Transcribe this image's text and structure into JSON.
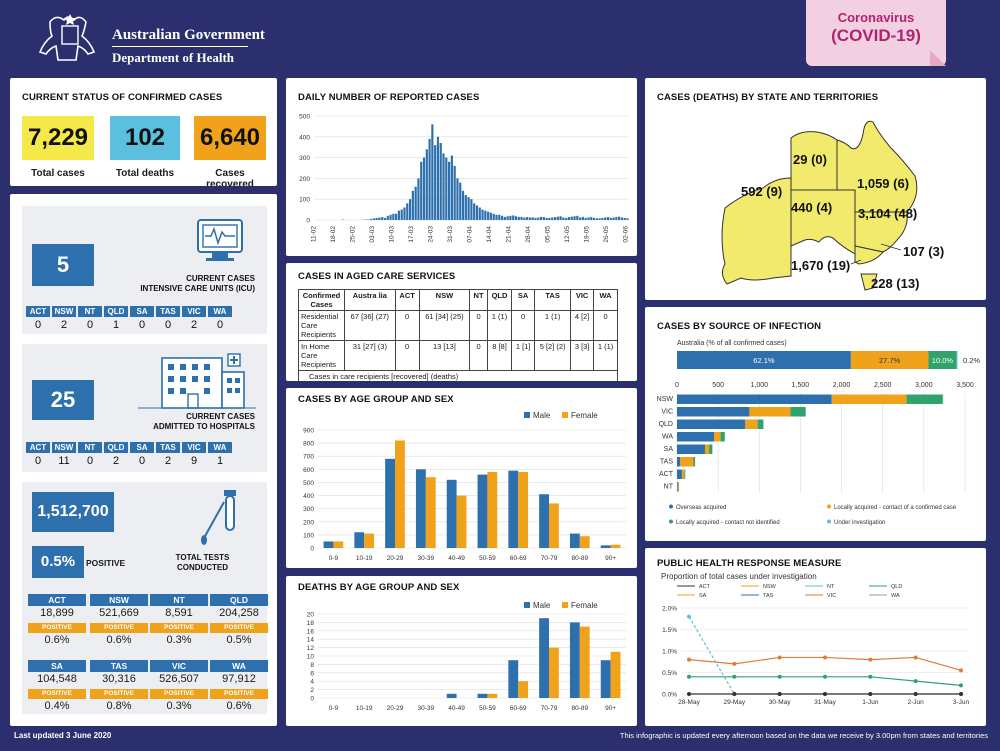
{
  "header": {
    "gov_line1": "Australian Government",
    "gov_line2": "Department of Health",
    "badge_line1": "Coronavirus",
    "badge_line2": "(COVID-19)"
  },
  "status": {
    "title": "CURRENT STATUS OF CONFIRMED CASES",
    "total_cases": "7,229",
    "total_cases_label": "Total cases",
    "total_deaths": "102",
    "total_deaths_label": "Total deaths",
    "recovered": "6,640",
    "recovered_label": "Cases recovered"
  },
  "icu": {
    "value": "5",
    "label1": "CURRENT CASES",
    "label2": "INTENSIVE CARE UNITS (ICU)",
    "states": [
      "ACT",
      "NSW",
      "NT",
      "QLD",
      "SA",
      "TAS",
      "VIC",
      "WA"
    ],
    "values": [
      "0",
      "2",
      "0",
      "1",
      "0",
      "0",
      "2",
      "0"
    ]
  },
  "hospital": {
    "value": "25",
    "label1": "CURRENT CASES",
    "label2": "ADMITTED TO HOSPITALS",
    "states": [
      "ACT",
      "NSW",
      "NT",
      "QLD",
      "SA",
      "TAS",
      "VIC",
      "WA"
    ],
    "values": [
      "0",
      "11",
      "0",
      "2",
      "0",
      "2",
      "9",
      "1"
    ]
  },
  "tests": {
    "total": "1,512,700",
    "positive_pct": "0.5%",
    "positive_label": "POSITIVE",
    "label1": "TOTAL TESTS",
    "label2": "CONDUCTED",
    "positive_tag": "POSITIVE",
    "rows": [
      [
        {
          "state": "ACT",
          "tests": "18,899",
          "pct": "0.6%"
        },
        {
          "state": "NSW",
          "tests": "521,669",
          "pct": "0.6%"
        },
        {
          "state": "NT",
          "tests": "8,591",
          "pct": "0.3%"
        },
        {
          "state": "QLD",
          "tests": "204,258",
          "pct": "0.5%"
        }
      ],
      [
        {
          "state": "SA",
          "tests": "104,548",
          "pct": "0.4%"
        },
        {
          "state": "TAS",
          "tests": "30,316",
          "pct": "0.8%"
        },
        {
          "state": "VIC",
          "tests": "526,507",
          "pct": "0.3%"
        },
        {
          "state": "WA",
          "tests": "97,912",
          "pct": "0.6%"
        }
      ]
    ]
  },
  "daily": {
    "title": "DAILY NUMBER OF REPORTED CASES",
    "yticks": [
      "0",
      "100",
      "200",
      "300",
      "400",
      "500"
    ],
    "xticks": [
      "11-02",
      "18-02",
      "25-02",
      "03-03",
      "10-03",
      "17-03",
      "24-03",
      "31-03",
      "07-04",
      "14-04",
      "21-04",
      "28-04",
      "05-05",
      "12-05",
      "19-05",
      "26-05",
      "02-06"
    ]
  },
  "aged": {
    "title": "CASES IN AGED CARE SERVICES",
    "headers": [
      "Confirmed Cases",
      "Austra lia",
      "ACT",
      "NSW",
      "NT",
      "QLD",
      "SA",
      "TAS",
      "VIC",
      "WA"
    ],
    "rows": [
      [
        "Residential Care Recipients",
        "67 [36] (27)",
        "0",
        "61 [34] (25)",
        "0",
        "1 (1)",
        "0",
        "1 (1)",
        "4 [2]",
        "0"
      ],
      [
        "In Home Care Recipients",
        "31 [27] (3)",
        "0",
        "13 [13]",
        "0",
        "8 [8]",
        "1 [1]",
        "5 [2] (2)",
        "3 [3]",
        "1 (1)"
      ]
    ],
    "note": "Cases in care recipients [recovered] (deaths)"
  },
  "map": {
    "title": "CASES (DEATHS) BY STATE AND TERRITORIES",
    "labels": {
      "NT": "29 (0)",
      "WA": "592 (9)",
      "QLD": "1,059 (6)",
      "SA": "440 (4)",
      "NSW": "3,104 (48)",
      "ACT": "107 (3)",
      "VIC": "1,670 (19)",
      "TAS": "228 (13)"
    }
  },
  "source": {
    "title": "CASES BY SOURCE OF INFECTION",
    "aus_label": "Australia (% of all confirmed cases)",
    "aus_pct": [
      "62.1%",
      "27.7%",
      "10.0%",
      "0.2%"
    ],
    "xticks": [
      "0",
      "500",
      "1,000",
      "1,500",
      "2,000",
      "2,500",
      "3,000",
      "3,500"
    ],
    "legend": [
      "Overseas acquired",
      "Locally acquired - contact of a confirmed case",
      "Locally acquired - contact not identified",
      "Under investigation"
    ]
  },
  "phrm": {
    "title": "PUBLIC HEALTH RESPONSE MEASURE",
    "subtitle": "Proportion of total cases under investigation",
    "legend": [
      "ACT",
      "NSW",
      "NT",
      "QLD",
      "SA",
      "TAS",
      "VIC",
      "WA"
    ],
    "yticks": [
      "0.0%",
      "0.5%",
      "1.0%",
      "1.5%",
      "2.0%"
    ],
    "xticks": [
      "28-May",
      "29-May",
      "30-May",
      "31-May",
      "1-Jun",
      "2-Jun",
      "3-Jun"
    ]
  },
  "agechart": {
    "title": "CASES BY AGE GROUP AND SEX",
    "legend_male": "Male",
    "legend_female": "Female",
    "yticks": [
      "0",
      "100",
      "200",
      "300",
      "400",
      "500",
      "600",
      "700",
      "800",
      "900"
    ]
  },
  "deathchart": {
    "title": "DEATHS BY AGE GROUP AND SEX",
    "legend_male": "Male",
    "legend_female": "Female",
    "yticks": [
      "0",
      "2",
      "4",
      "6",
      "8",
      "10",
      "12",
      "14",
      "16",
      "18",
      "20"
    ]
  },
  "footer": {
    "left": "Last updated 3 June 2020",
    "right": "This infographic is updated every afternoon based on the data we receive by 3.00pm from states and territories"
  },
  "colors": {
    "blue": "#2e6fae",
    "orange": "#f0a21b",
    "green": "#2fa36b",
    "yellow": "#f5e94a",
    "cyan": "#5bc0de",
    "map": "#f2ea6d"
  },
  "chart_data": [
    {
      "type": "bar",
      "title": "DAILY NUMBER OF REPORTED CASES",
      "x": [
        "11-02",
        "12-02",
        "13-02",
        "14-02",
        "15-02",
        "16-02",
        "17-02",
        "18-02",
        "19-02",
        "20-02",
        "21-02",
        "22-02",
        "23-02",
        "24-02",
        "25-02",
        "26-02",
        "27-02",
        "28-02",
        "29-02",
        "01-03",
        "02-03",
        "03-03",
        "04-03",
        "05-03",
        "06-03",
        "07-03",
        "08-03",
        "09-03",
        "10-03",
        "11-03",
        "12-03",
        "13-03",
        "14-03",
        "15-03",
        "16-03",
        "17-03",
        "18-03",
        "19-03",
        "20-03",
        "21-03",
        "22-03",
        "23-03",
        "24-03",
        "25-03",
        "26-03",
        "27-03",
        "28-03",
        "29-03",
        "30-03",
        "31-03",
        "01-04",
        "02-04",
        "03-04",
        "04-04",
        "05-04",
        "06-04",
        "07-04",
        "08-04",
        "09-04",
        "10-04",
        "11-04",
        "12-04",
        "13-04",
        "14-04",
        "15-04",
        "16-04",
        "17-04",
        "18-04",
        "19-04",
        "20-04",
        "21-04",
        "22-04",
        "23-04",
        "24-04",
        "25-04",
        "26-04",
        "27-04",
        "28-04",
        "29-04",
        "30-04",
        "01-05",
        "02-05",
        "03-05",
        "04-05",
        "05-05",
        "06-05",
        "07-05",
        "08-05",
        "09-05",
        "10-05",
        "11-05",
        "12-05",
        "13-05",
        "14-05",
        "15-05",
        "16-05",
        "17-05",
        "18-05",
        "19-05",
        "20-05",
        "21-05",
        "22-05",
        "23-05",
        "24-05",
        "25-05",
        "26-05",
        "27-05",
        "28-05",
        "29-05",
        "30-05",
        "31-05",
        "01-06",
        "02-06"
      ],
      "values": [
        0,
        0,
        0,
        0,
        0,
        0,
        0,
        0,
        0,
        0,
        2,
        0,
        0,
        0,
        0,
        0,
        0,
        1,
        2,
        2,
        5,
        8,
        10,
        12,
        14,
        10,
        20,
        25,
        30,
        30,
        45,
        50,
        60,
        80,
        100,
        140,
        160,
        200,
        280,
        300,
        340,
        390,
        460,
        360,
        400,
        370,
        320,
        300,
        280,
        310,
        260,
        200,
        180,
        140,
        120,
        110,
        100,
        80,
        70,
        60,
        50,
        45,
        40,
        35,
        30,
        25,
        25,
        20,
        15,
        18,
        20,
        22,
        18,
        15,
        15,
        12,
        14,
        12,
        13,
        10,
        12,
        15,
        14,
        10,
        10,
        12,
        14,
        16,
        18,
        12,
        10,
        14,
        16,
        18,
        20,
        12,
        15,
        10,
        12,
        14,
        10,
        8,
        8,
        10,
        12,
        14,
        10,
        12,
        14,
        16,
        12,
        10,
        8
      ],
      "ylim": [
        0,
        500
      ]
    },
    {
      "type": "bar",
      "title": "CASES BY AGE GROUP AND SEX",
      "categories": [
        "0-9",
        "10-19",
        "20-29",
        "30-39",
        "40-49",
        "50-59",
        "60-69",
        "70-79",
        "80-89",
        "90+"
      ],
      "series": [
        {
          "name": "Male",
          "values": [
            50,
            120,
            680,
            600,
            520,
            560,
            590,
            410,
            110,
            20
          ]
        },
        {
          "name": "Female",
          "values": [
            50,
            110,
            820,
            540,
            400,
            580,
            580,
            340,
            90,
            25
          ]
        }
      ],
      "ylim": [
        0,
        900
      ]
    },
    {
      "type": "bar",
      "title": "DEATHS BY AGE GROUP AND SEX",
      "categories": [
        "0-9",
        "10-19",
        "20-29",
        "30-39",
        "40-49",
        "50-59",
        "60-69",
        "70-79",
        "80-89",
        "90+"
      ],
      "series": [
        {
          "name": "Male",
          "values": [
            0,
            0,
            0,
            0,
            1,
            1,
            9,
            19,
            18,
            9
          ]
        },
        {
          "name": "Female",
          "values": [
            0,
            0,
            0,
            0,
            0,
            1,
            4,
            12,
            17,
            11
          ]
        }
      ],
      "ylim": [
        0,
        20
      ]
    },
    {
      "type": "bar",
      "title": "CASES BY SOURCE OF INFECTION",
      "categories": [
        "NSW",
        "VIC",
        "QLD",
        "WA",
        "SA",
        "TAS",
        "ACT",
        "NT"
      ],
      "series": [
        {
          "name": "Overseas acquired",
          "values": [
            1880,
            880,
            830,
            450,
            340,
            40,
            60,
            10
          ]
        },
        {
          "name": "Locally acquired - contact of a confirmed case",
          "values": [
            910,
            500,
            150,
            80,
            50,
            160,
            30,
            10
          ]
        },
        {
          "name": "Locally acquired - contact not identified",
          "values": [
            440,
            180,
            70,
            50,
            40,
            20,
            10,
            5
          ]
        },
        {
          "name": "Under investigation",
          "values": [
            5,
            8,
            2,
            1,
            0,
            0,
            0,
            0
          ]
        }
      ],
      "xlim": [
        0,
        3500
      ],
      "australia": [
        62.1,
        27.7,
        10.0,
        0.2
      ]
    },
    {
      "type": "line",
      "title": "PUBLIC HEALTH RESPONSE MEASURE",
      "x": [
        "28-May",
        "29-May",
        "30-May",
        "31-May",
        "1-Jun",
        "2-Jun",
        "3-Jun"
      ],
      "series": [
        {
          "name": "NT",
          "values": [
            1.8,
            0,
            0,
            0,
            0,
            0,
            0
          ]
        },
        {
          "name": "QLD",
          "values": [
            0.4,
            0.4,
            0.4,
            0.4,
            0.4,
            0.3,
            0.2
          ]
        },
        {
          "name": "VIC",
          "values": [
            0.8,
            0.7,
            0.85,
            0.85,
            0.8,
            0.85,
            0.55
          ]
        },
        {
          "name": "ACT",
          "values": [
            0,
            0,
            0,
            0,
            0,
            0,
            0
          ]
        }
      ],
      "ylim": [
        0,
        2.0
      ]
    }
  ]
}
